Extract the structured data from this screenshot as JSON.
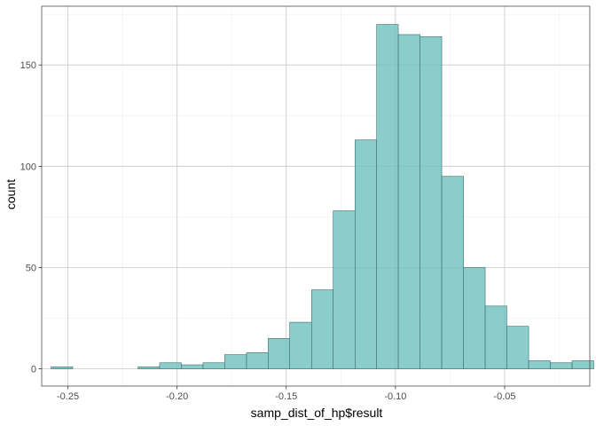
{
  "chart_data": {
    "type": "bar",
    "xlabel": "samp_dist_of_hp$result",
    "ylabel": "count",
    "xlim": [
      -0.262,
      -0.011
    ],
    "ylim": [
      -8.5,
      179
    ],
    "x_ticks": [
      -0.25,
      -0.2,
      -0.15,
      -0.1,
      -0.05
    ],
    "x_tick_labels": [
      "-0.25",
      "-0.20",
      "-0.15",
      "-0.10",
      "-0.05"
    ],
    "y_ticks": [
      0,
      50,
      100,
      150
    ],
    "y_tick_labels": [
      "0",
      "50",
      "100",
      "150"
    ],
    "grid": true,
    "bins": [
      {
        "x0": -0.2577,
        "x1": -0.2478,
        "count": 1
      },
      {
        "x0": -0.2478,
        "x1": -0.2378,
        "count": 0
      },
      {
        "x0": -0.2378,
        "x1": -0.2279,
        "count": 0
      },
      {
        "x0": -0.2279,
        "x1": -0.2179,
        "count": 0
      },
      {
        "x0": -0.2179,
        "x1": -0.208,
        "count": 1
      },
      {
        "x0": -0.208,
        "x1": -0.1981,
        "count": 3
      },
      {
        "x0": -0.1981,
        "x1": -0.1881,
        "count": 2
      },
      {
        "x0": -0.1881,
        "x1": -0.1782,
        "count": 3
      },
      {
        "x0": -0.1782,
        "x1": -0.1682,
        "count": 7
      },
      {
        "x0": -0.1682,
        "x1": -0.1583,
        "count": 8
      },
      {
        "x0": -0.1583,
        "x1": -0.1484,
        "count": 15
      },
      {
        "x0": -0.1484,
        "x1": -0.1384,
        "count": 23
      },
      {
        "x0": -0.1384,
        "x1": -0.1285,
        "count": 39
      },
      {
        "x0": -0.1285,
        "x1": -0.1185,
        "count": 78
      },
      {
        "x0": -0.1185,
        "x1": -0.1086,
        "count": 113
      },
      {
        "x0": -0.1086,
        "x1": -0.0987,
        "count": 170
      },
      {
        "x0": -0.0987,
        "x1": -0.0887,
        "count": 165
      },
      {
        "x0": -0.0887,
        "x1": -0.0788,
        "count": 164
      },
      {
        "x0": -0.0788,
        "x1": -0.0688,
        "count": 95
      },
      {
        "x0": -0.0688,
        "x1": -0.0589,
        "count": 50
      },
      {
        "x0": -0.0589,
        "x1": -0.049,
        "count": 31
      },
      {
        "x0": -0.049,
        "x1": -0.039,
        "count": 21
      },
      {
        "x0": -0.039,
        "x1": -0.0291,
        "count": 4
      },
      {
        "x0": -0.0291,
        "x1": -0.0191,
        "count": 3
      },
      {
        "x0": -0.0191,
        "x1": -0.0092,
        "count": 4
      }
    ],
    "colors": {
      "bar_fill": "#6ec0bd",
      "bar_outline": "#3d6d6b"
    }
  }
}
